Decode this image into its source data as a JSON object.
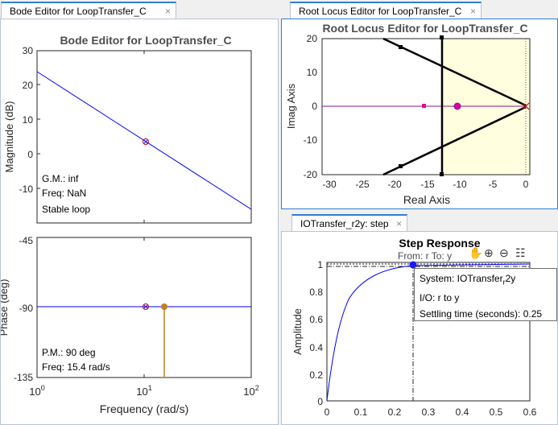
{
  "tabs": {
    "bode": "Bode Editor for LoopTransfer_C",
    "rootlocus": "Root Locus Editor for LoopTransfer_C",
    "step": "IOTransfer_r2y: step"
  },
  "close_glyph": "×",
  "bode": {
    "title": "Bode Editor for LoopTransfer_C",
    "mag_ylabel": "Magnitude (dB)",
    "phase_ylabel": "Phase (deg)",
    "xlabel": "Frequency (rad/s)",
    "mag_ticks": [
      "30",
      "20",
      "10",
      "0",
      "-10"
    ],
    "phase_ticks": [
      "-45",
      "-90",
      "-135"
    ],
    "x_ticks": [
      {
        "base": "10",
        "exp": "0"
      },
      {
        "base": "10",
        "exp": "1"
      },
      {
        "base": "10",
        "exp": "2"
      }
    ],
    "gm": "G.M.: inf",
    "gm_freq": "Freq: NaN",
    "stability": "Stable loop",
    "pm": "P.M.: 90 deg",
    "pm_freq": "Freq: 15.4 rad/s",
    "colors": {
      "curve": "#0000ff",
      "marker": "#c08020",
      "pole": "#cc0000"
    }
  },
  "rootlocus": {
    "title": "Root Locus Editor for LoopTransfer_C",
    "xlabel": "Real Axis",
    "ylabel": "Imag Axis",
    "x_ticks": [
      "-30",
      "-25",
      "-20",
      "-15",
      "-10",
      "-5",
      "0"
    ],
    "y_ticks": [
      "20",
      "10",
      "0",
      "-10",
      "-20"
    ],
    "colors": {
      "background": "#ffffe0",
      "locus": "#000000",
      "pole": "#cc0000",
      "marker": "#e000a0"
    }
  },
  "step": {
    "title": "Step Response",
    "subtitle": "From: r  To: y",
    "xlabel": "",
    "ylabel": "Amplitude",
    "x_ticks": [
      "0",
      "0.1",
      "0.2",
      "0.3",
      "0.4",
      "0.5",
      "0.6"
    ],
    "y_ticks": [
      "1",
      "0.8",
      "0.6",
      "0.4",
      "0.2",
      "0"
    ],
    "tooltip": {
      "system_label": "System: IOTransfer",
      "system_sub": "r",
      "system_tail": "2y",
      "io": "I/O: r to y",
      "settling": "Settling time (seconds): 0.25"
    },
    "colors": {
      "curve": "#0000ff",
      "marker": "#0000ff"
    }
  },
  "toolbar_icons": [
    "hand-icon",
    "zoom-in-icon",
    "zoom-out-icon",
    "legend-icon"
  ]
}
